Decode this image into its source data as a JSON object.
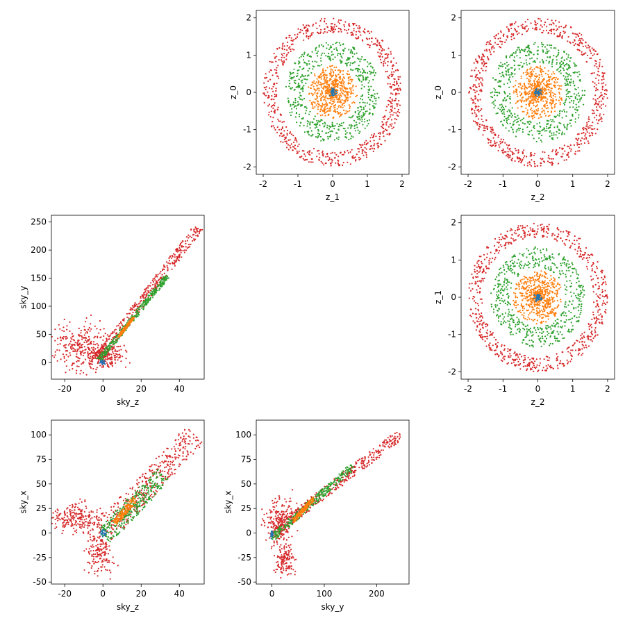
{
  "figure": {
    "background": "#ffffff"
  },
  "colors": {
    "blue": "#1f77b4",
    "orange": "#ff7f0e",
    "green": "#2ca02c",
    "red": "#d62728"
  },
  "chart_data": [
    {
      "id": "z1-z0",
      "type": "scatter",
      "xlabel": "z_1",
      "ylabel": "z_0",
      "xlim": [
        -2.2,
        2.2
      ],
      "ylim": [
        -2.2,
        2.2
      ],
      "xticks": [
        -2,
        -1,
        0,
        1,
        2
      ],
      "yticks": [
        -2,
        -1,
        0,
        1,
        2
      ],
      "grid": false,
      "series": [
        {
          "color": "#d62728",
          "shape": "ring",
          "r_inner": 1.6,
          "r_outer": 2.0,
          "cx": 0,
          "cy": 0,
          "n": 700
        },
        {
          "color": "#2ca02c",
          "shape": "ring",
          "r_inner": 0.8,
          "r_outer": 1.35,
          "cx": 0,
          "cy": 0,
          "n": 550
        },
        {
          "color": "#ff7f0e",
          "shape": "ring",
          "r_inner": 0.0,
          "r_outer": 0.72,
          "cx": 0,
          "cy": 0,
          "n": 600
        },
        {
          "color": "#1f77b4",
          "shape": "ring",
          "r_inner": 0.0,
          "r_outer": 0.12,
          "cx": 0,
          "cy": 0,
          "n": 40
        }
      ]
    },
    {
      "id": "z2-z0",
      "type": "scatter",
      "xlabel": "z_2",
      "ylabel": "z_0",
      "xlim": [
        -2.2,
        2.2
      ],
      "ylim": [
        -2.2,
        2.2
      ],
      "xticks": [
        -2,
        -1,
        0,
        1,
        2
      ],
      "yticks": [
        -2,
        -1,
        0,
        1,
        2
      ],
      "grid": false,
      "series": [
        {
          "color": "#d62728",
          "shape": "ring",
          "r_inner": 1.6,
          "r_outer": 2.0,
          "cx": 0,
          "cy": 0,
          "n": 700
        },
        {
          "color": "#2ca02c",
          "shape": "ring",
          "r_inner": 0.8,
          "r_outer": 1.35,
          "cx": 0,
          "cy": 0,
          "n": 550
        },
        {
          "color": "#ff7f0e",
          "shape": "ring",
          "r_inner": 0.0,
          "r_outer": 0.72,
          "cx": 0,
          "cy": 0,
          "n": 600
        },
        {
          "color": "#1f77b4",
          "shape": "ring",
          "r_inner": 0.0,
          "r_outer": 0.12,
          "cx": 0,
          "cy": 0,
          "n": 40
        }
      ]
    },
    {
      "id": "skyz-skyy",
      "type": "scatter",
      "xlabel": "sky_z",
      "ylabel": "sky_y",
      "xlim": [
        -27,
        53
      ],
      "ylim": [
        -30,
        262
      ],
      "xticks": [
        -20,
        0,
        20,
        40
      ],
      "yticks": [
        0,
        50,
        100,
        150,
        200,
        250
      ],
      "grid": false,
      "series": [
        {
          "color": "#d62728",
          "shape": "band",
          "x0": -2,
          "y0": 10,
          "x1": 50,
          "y1": 240,
          "width": 22,
          "n": 380
        },
        {
          "color": "#d62728",
          "shape": "blob",
          "cx": -12,
          "cy": 30,
          "sx": 8,
          "sy": 22,
          "n": 260
        },
        {
          "color": "#d62728",
          "shape": "blob",
          "cx": 0,
          "cy": 12,
          "sx": 6,
          "sy": 10,
          "n": 220
        },
        {
          "color": "#2ca02c",
          "shape": "band",
          "x0": -2,
          "y0": 5,
          "x1": 34,
          "y1": 155,
          "width": 12,
          "n": 320
        },
        {
          "color": "#ff7f0e",
          "shape": "band",
          "x0": 8,
          "y0": 45,
          "x1": 16,
          "y1": 80,
          "width": 5,
          "n": 160
        },
        {
          "color": "#1f77b4",
          "shape": "blob",
          "cx": 0,
          "cy": 0,
          "sx": 0.8,
          "sy": 2,
          "n": 20
        }
      ]
    },
    {
      "id": "z2-z1",
      "type": "scatter",
      "xlabel": "z_2",
      "ylabel": "z_1",
      "xlim": [
        -2.2,
        2.2
      ],
      "ylim": [
        -2.2,
        2.2
      ],
      "xticks": [
        -2,
        -1,
        0,
        1,
        2
      ],
      "yticks": [
        -2,
        -1,
        0,
        1,
        2
      ],
      "grid": false,
      "series": [
        {
          "color": "#d62728",
          "shape": "ring",
          "r_inner": 1.6,
          "r_outer": 2.0,
          "cx": 0,
          "cy": 0,
          "n": 700
        },
        {
          "color": "#2ca02c",
          "shape": "ring",
          "r_inner": 0.8,
          "r_outer": 1.35,
          "cx": 0,
          "cy": 0,
          "n": 550
        },
        {
          "color": "#ff7f0e",
          "shape": "ring",
          "r_inner": 0.0,
          "r_outer": 0.72,
          "cx": 0,
          "cy": 0,
          "n": 600
        },
        {
          "color": "#1f77b4",
          "shape": "ring",
          "r_inner": 0.0,
          "r_outer": 0.12,
          "cx": 0,
          "cy": 0,
          "n": 40
        }
      ]
    },
    {
      "id": "skyz-skyx",
      "type": "scatter",
      "xlabel": "sky_z",
      "ylabel": "sky_x",
      "xlim": [
        -27,
        53
      ],
      "ylim": [
        -52,
        115
      ],
      "xticks": [
        -20,
        0,
        20,
        40
      ],
      "yticks": [
        -50,
        -25,
        0,
        25,
        50,
        75,
        100
      ],
      "grid": false,
      "series": [
        {
          "color": "#d62728",
          "shape": "band",
          "x0": 0,
          "y0": 0,
          "x1": 48,
          "y1": 100,
          "width": 40,
          "n": 380
        },
        {
          "color": "#d62728",
          "shape": "blob",
          "cx": -14,
          "cy": 15,
          "sx": 7,
          "sy": 8,
          "n": 220
        },
        {
          "color": "#d62728",
          "shape": "blob",
          "cx": -2,
          "cy": -20,
          "sx": 4,
          "sy": 12,
          "n": 160
        },
        {
          "color": "#2ca02c",
          "shape": "band",
          "x0": 0,
          "y0": -5,
          "x1": 32,
          "y1": 60,
          "width": 30,
          "n": 320
        },
        {
          "color": "#ff7f0e",
          "shape": "band",
          "x0": 6,
          "y0": 10,
          "x1": 17,
          "y1": 35,
          "width": 10,
          "n": 160
        },
        {
          "color": "#1f77b4",
          "shape": "blob",
          "cx": 0,
          "cy": 0,
          "sx": 0.8,
          "sy": 2,
          "n": 20
        }
      ]
    },
    {
      "id": "skyy-skyx",
      "type": "scatter",
      "xlabel": "sky_y",
      "ylabel": "sky_x",
      "xlim": [
        -30,
        262
      ],
      "ylim": [
        -52,
        115
      ],
      "xticks": [
        0,
        100,
        200
      ],
      "yticks": [
        -50,
        -25,
        0,
        25,
        50,
        75,
        100
      ],
      "grid": false,
      "series": [
        {
          "color": "#d62728",
          "shape": "band",
          "x0": 0,
          "y0": 0,
          "x1": 245,
          "y1": 100,
          "width": 14,
          "n": 380
        },
        {
          "color": "#d62728",
          "shape": "blob",
          "cx": 15,
          "cy": 10,
          "sx": 14,
          "sy": 12,
          "n": 240
        },
        {
          "color": "#d62728",
          "shape": "blob",
          "cx": 25,
          "cy": -28,
          "sx": 10,
          "sy": 8,
          "n": 120
        },
        {
          "color": "#2ca02c",
          "shape": "band",
          "x0": 0,
          "y0": -5,
          "x1": 155,
          "y1": 68,
          "width": 10,
          "n": 320
        },
        {
          "color": "#ff7f0e",
          "shape": "band",
          "x0": 40,
          "y0": 12,
          "x1": 80,
          "y1": 35,
          "width": 6,
          "n": 160
        },
        {
          "color": "#1f77b4",
          "shape": "blob",
          "cx": 0,
          "cy": 0,
          "sx": 1.5,
          "sy": 2,
          "n": 20
        }
      ]
    }
  ]
}
